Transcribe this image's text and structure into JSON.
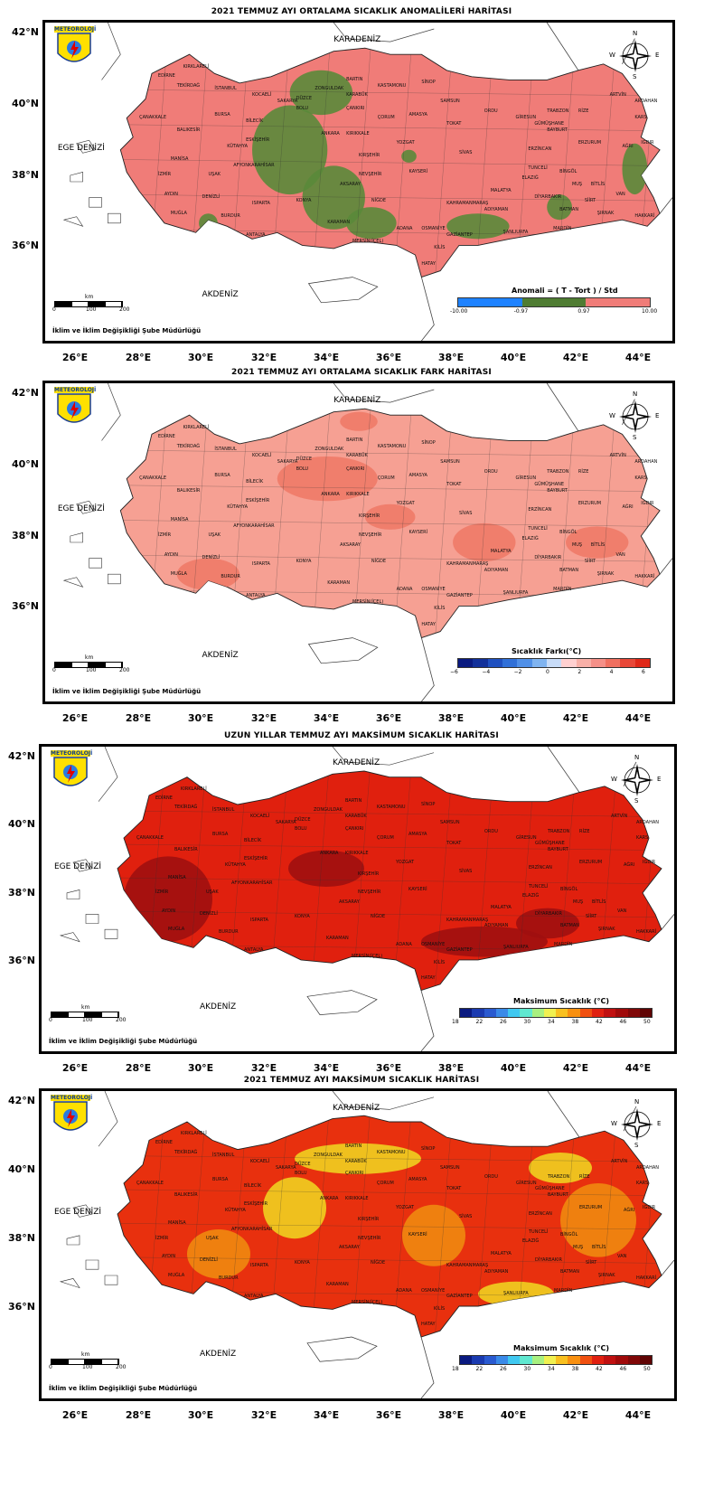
{
  "panels": [
    {
      "title": "2021 TEMMUZ AYI ORTALAMA SICAKLIK ANOMALİLERİ HARİTASI",
      "lat_labels": [
        "42°N",
        "40°N",
        "38°N",
        "36°N"
      ],
      "lon_labels": [
        "26°E",
        "28°E",
        "30°E",
        "32°E",
        "34°E",
        "36°E",
        "38°E",
        "40°E",
        "42°E",
        "44°E"
      ],
      "sea_labels": [
        "KARADENİZ",
        "EGE DENİZİ",
        "AKDENİZ"
      ],
      "logo": "METEOROLOJİ",
      "credit": "İklim ve İklim Değişikliği Şube Müdürlüğü",
      "scale": {
        "unit": "km",
        "ticks": [
          "0",
          "100",
          "200"
        ]
      },
      "compass": [
        "N",
        "E",
        "S",
        "W"
      ],
      "legend": {
        "title": "Anomali = ( T - Tort ) / Std",
        "ticks": [
          "-10.00",
          "-0.97",
          "0.97",
          "10.00"
        ],
        "colors": [
          "#1e82ff",
          "#4f7c32",
          "#f07c78"
        ]
      },
      "fill": "#f07c78",
      "patch": "#5a8a3a"
    },
    {
      "title": "2021 TEMMUZ AYI ORTALAMA SICAKLIK FARK HARİTASI",
      "lat_labels": [
        "42°N",
        "40°N",
        "38°N",
        "36°N"
      ],
      "lon_labels": [
        "26°E",
        "28°E",
        "30°E",
        "32°E",
        "34°E",
        "36°E",
        "38°E",
        "40°E",
        "42°E",
        "44°E"
      ],
      "sea_labels": [
        "KARADENİZ",
        "EGE DENİZİ",
        "AKDENİZ"
      ],
      "logo": "METEOROLOJİ",
      "credit": "İklim ve İklim Değişikliği Şube Müdürlüğü",
      "scale": {
        "unit": "km",
        "ticks": [
          "0",
          "100",
          "200"
        ]
      },
      "compass": [
        "N",
        "E",
        "S",
        "W"
      ],
      "legend": {
        "title": "Sıcaklık Farkı(°C)",
        "ticks": [
          "−6",
          "−4",
          "−2",
          "0",
          "2",
          "4",
          "6"
        ],
        "colors": [
          "#0a1a80",
          "#12309a",
          "#1f50c0",
          "#3070d8",
          "#5090e8",
          "#80b4f0",
          "#c8dcf8",
          "#ffd0d0",
          "#f8b0a8",
          "#f59088",
          "#f07060",
          "#e84838",
          "#e02818"
        ]
      },
      "fill": "#f6a093",
      "patch": "#f07a68"
    },
    {
      "title": "UZUN YILLAR TEMMUZ AYI MAKSİMUM SICAKLIK HARİTASI",
      "lat_labels": [
        "42°N",
        "40°N",
        "38°N",
        "36°N"
      ],
      "lon_labels": [
        "26°E",
        "28°E",
        "30°E",
        "32°E",
        "34°E",
        "36°E",
        "38°E",
        "40°E",
        "42°E",
        "44°E"
      ],
      "sea_labels": [
        "KARADENİZ",
        "EGE DENİZİ",
        "AKDENİZ"
      ],
      "logo": "METEOROLOJİ",
      "credit": "İklim ve İklim Değişikliği Şube Müdürlüğü",
      "scale": {
        "unit": "km",
        "ticks": [
          "0",
          "100",
          "200"
        ]
      },
      "compass": [
        "N",
        "E",
        "S",
        "W"
      ],
      "legend": {
        "title": "Maksimum Sıcaklık (°C)",
        "ticks": [
          "18",
          "22",
          "26",
          "30",
          "34",
          "38",
          "42",
          "46",
          "50"
        ],
        "colors": [
          "#0a1a80",
          "#1a3ab0",
          "#2a5ad0",
          "#3a8ae8",
          "#40c8f0",
          "#60e8d0",
          "#a8f080",
          "#f0f050",
          "#f8c020",
          "#f89010",
          "#f05010",
          "#e02010",
          "#c01010",
          "#a00a0a",
          "#800808",
          "#600404"
        ]
      },
      "fill": "#e0200e",
      "patch": "#a01010"
    },
    {
      "title": "2021 TEMMUZ AYI MAKSİMUM SICAKLIK HARİTASI",
      "lat_labels": [
        "42°N",
        "40°N",
        "38°N",
        "36°N"
      ],
      "lon_labels": [
        "26°E",
        "28°E",
        "30°E",
        "32°E",
        "34°E",
        "36°E",
        "38°E",
        "40°E",
        "42°E",
        "44°E"
      ],
      "sea_labels": [
        "KARADENİZ",
        "EGE DENİZİ",
        "AKDENİZ"
      ],
      "logo": "METEOROLOJİ",
      "credit": "İklim ve İklim Değişikliği Şube Müdürlüğü",
      "scale": {
        "unit": "km",
        "ticks": [
          "0",
          "100",
          "200"
        ]
      },
      "compass": [
        "N",
        "E",
        "S",
        "W"
      ],
      "legend": {
        "title": "Maksimum Sıcaklık (°C)",
        "ticks": [
          "18",
          "22",
          "26",
          "30",
          "34",
          "38",
          "42",
          "46",
          "50"
        ],
        "colors": [
          "#0a1a80",
          "#1a3ab0",
          "#2a5ad0",
          "#3a8ae8",
          "#40c8f0",
          "#60e8d0",
          "#a8f080",
          "#f0f050",
          "#f8c020",
          "#f89010",
          "#f05010",
          "#e02010",
          "#c01010",
          "#a00a0a",
          "#800808",
          "#600404"
        ]
      },
      "fill": "#e8300e",
      "patch": "#f59a10"
    }
  ],
  "provinces": [
    "KIRKLARELİ",
    "EDİRNE",
    "TEKİRDAĞ",
    "İSTANBUL",
    "KOCAELİ",
    "SAKARYA",
    "DÜZCE",
    "ZONGULDAK",
    "BARTIN",
    "KARABÜK",
    "KASTAMONU",
    "SİNOP",
    "SAMSUN",
    "ORDU",
    "GİRESUN",
    "TRABZON",
    "RİZE",
    "ARTVİN",
    "ARDAHAN",
    "KARS",
    "IĞDIR",
    "AĞRI",
    "ERZURUM",
    "BAYBURT",
    "GÜMÜŞHANE",
    "ERZİNCAN",
    "TUNCELİ",
    "BİNGÖL",
    "MUŞ",
    "BİTLİS",
    "VAN",
    "HAKKARİ",
    "ŞIRNAK",
    "SİİRT",
    "BATMAN",
    "MARDİN",
    "DİYARBAKIR",
    "ŞANLIURFA",
    "ADIYAMAN",
    "MALATYA",
    "ELAZIĞ",
    "SİVAS",
    "TOKAT",
    "AMASYA",
    "ÇORUM",
    "ÇANKIRI",
    "YOZGAT",
    "KAYSERİ",
    "KIRŞEHİR",
    "KIRIKKALE",
    "ANKARA",
    "BOLU",
    "ESKİŞEHİR",
    "BİLECİK",
    "BURSA",
    "BALIKESİR",
    "ÇANAKKALE",
    "İZMİR",
    "MANİSA",
    "UŞAK",
    "KÜTAHYA",
    "AFYONKARAHİSAR",
    "AYDIN",
    "DENİZLİ",
    "MUĞLA",
    "BURDUR",
    "ISPARTA",
    "ANTALYA",
    "KONYA",
    "AKSARAY",
    "NEVŞEHİR",
    "NİĞDE",
    "KARAMAN",
    "MERSİN(İÇEL)",
    "ADANA",
    "OSMANİYE",
    "HATAY",
    "KİLİS",
    "GAZİANTEP",
    "KAHRAMANMARAŞ"
  ]
}
